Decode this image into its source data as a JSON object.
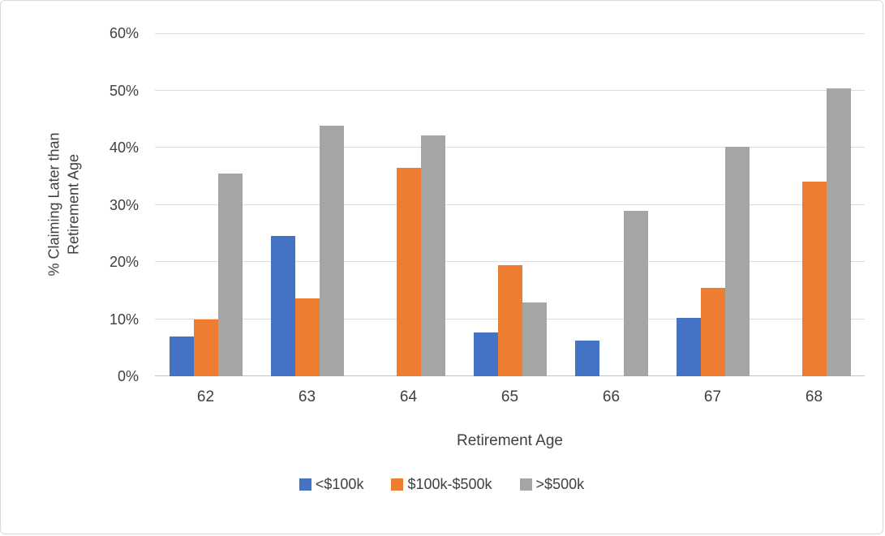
{
  "chart_data": {
    "type": "bar",
    "title": "",
    "xlabel": "Retirement Age",
    "ylabel": "% Claiming Later than Retirement Age",
    "categories": [
      "62",
      "63",
      "64",
      "65",
      "66",
      "67",
      "68"
    ],
    "series": [
      {
        "name": "<$100k",
        "color": "#4472C4",
        "values": [
          7.0,
          24.5,
          0,
          7.7,
          6.2,
          10.2,
          0
        ]
      },
      {
        "name": "$100k-$500k",
        "color": "#ED7D31",
        "values": [
          9.9,
          13.6,
          36.5,
          19.4,
          0,
          15.5,
          34.1
        ]
      },
      {
        "name": ">$500k",
        "color": "#A5A5A5",
        "values": [
          35.4,
          43.8,
          42.2,
          12.9,
          28.9,
          40.1,
          50.4
        ]
      }
    ],
    "ylim": [
      0,
      60
    ],
    "ytick_step": 10,
    "yticklabels": [
      "0%",
      "10%",
      "20%",
      "30%",
      "40%",
      "50%",
      "60%"
    ],
    "grid": true,
    "legend_position": "bottom"
  }
}
